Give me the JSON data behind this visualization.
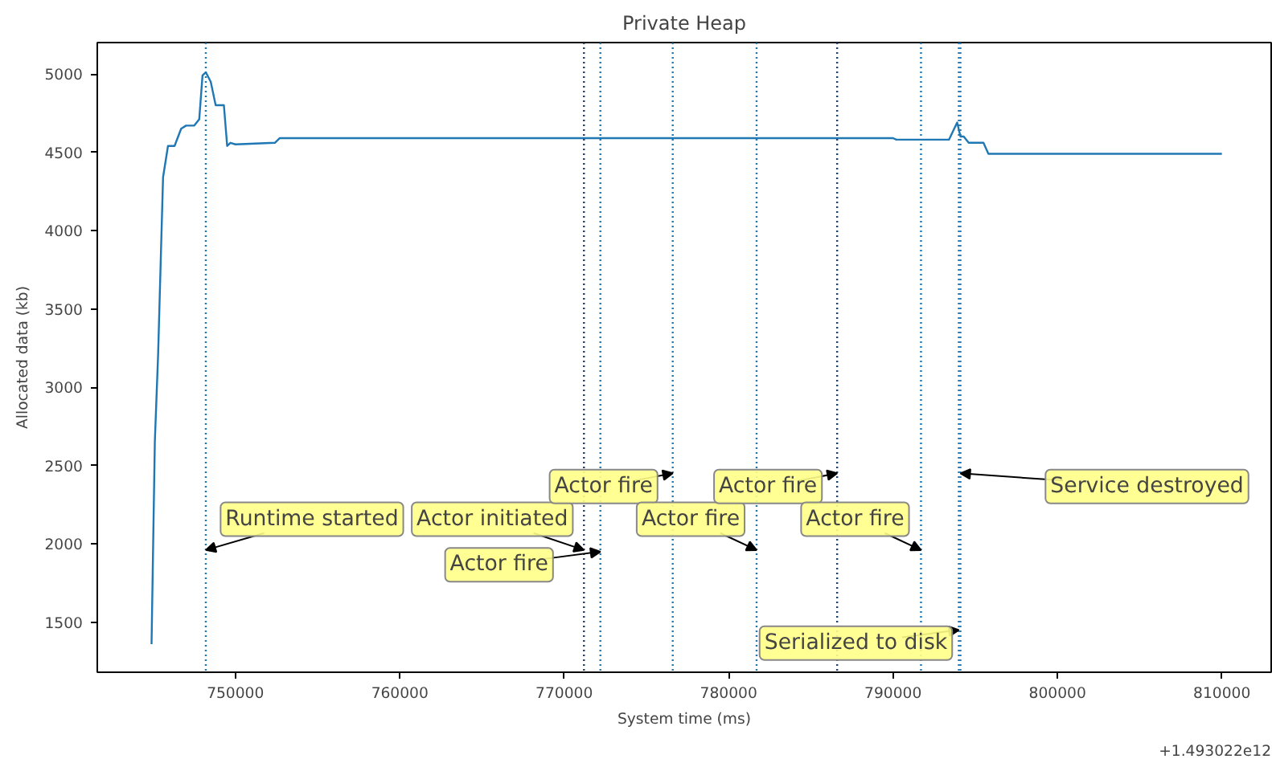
{
  "chart_data": {
    "type": "line",
    "title": "Private Heap",
    "xlabel": "System time (ms)",
    "ylabel": "Allocated data (kb)",
    "x": [
      744900,
      745100,
      745300,
      745600,
      745900,
      746300,
      746700,
      747000,
      747500,
      747800,
      748000,
      748200,
      748500,
      748800,
      749300,
      749500,
      749700,
      750000,
      752400,
      752700,
      790000,
      790200,
      793400,
      793900,
      794100,
      794300,
      794600,
      795500,
      795800,
      810000
    ],
    "series": [
      {
        "color": "#1f77b4",
        "values": [
          1360,
          2650,
          3210,
          4340,
          4540,
          4540,
          4650,
          4670,
          4670,
          4710,
          4990,
          5010,
          4950,
          4800,
          4800,
          4540,
          4560,
          4550,
          4560,
          4590,
          4590,
          4580,
          4580,
          4690,
          4600,
          4600,
          4560,
          4560,
          4490,
          4490
        ]
      }
    ],
    "xlim": [
      741600,
      813000
    ],
    "ylim": [
      1180,
      5200
    ],
    "xticks": [
      750000,
      760000,
      770000,
      780000,
      790000,
      800000,
      810000
    ],
    "yticks": [
      1500,
      2000,
      2500,
      3000,
      3500,
      4000,
      4500,
      5000
    ],
    "grid": false,
    "line_style": "solid",
    "marker": "none",
    "ref_lines": [
      {
        "axis": "x",
        "value": 748200,
        "color": "#1f77b4",
        "line_style": "dotted"
      },
      {
        "axis": "x",
        "value": 771200,
        "color": "#1f3f6f",
        "line_style": "dotted"
      },
      {
        "axis": "x",
        "value": 772200,
        "color": "#1f77b4",
        "line_style": "dotted"
      },
      {
        "axis": "x",
        "value": 776600,
        "color": "#1f77b4",
        "line_style": "dotted"
      },
      {
        "axis": "x",
        "value": 781700,
        "color": "#1f77b4",
        "line_style": "dotted"
      },
      {
        "axis": "x",
        "value": 786600,
        "color": "#1f3f6f",
        "line_style": "dotted"
      },
      {
        "axis": "x",
        "value": 791700,
        "color": "#1f77b4",
        "line_style": "dotted"
      },
      {
        "axis": "x",
        "value": 794000,
        "color": "#1f77b4",
        "line_style": "dotted"
      },
      {
        "axis": "x",
        "value": 794100,
        "color": "#1f77b4",
        "line_style": "dotted"
      }
    ],
    "annotations": [
      {
        "text": "Runtime started",
        "x": 748200,
        "y": 1960
      },
      {
        "text": "Actor initiated",
        "x": 771200,
        "y": 1960
      },
      {
        "text": "Actor fire",
        "x": 772200,
        "y": 1950
      },
      {
        "text": "Actor fire",
        "x": 776600,
        "y": 2450
      },
      {
        "text": "Actor fire",
        "x": 781700,
        "y": 1960
      },
      {
        "text": "Actor fire",
        "x": 786600,
        "y": 2450
      },
      {
        "text": "Actor fire",
        "x": 791700,
        "y": 1960
      },
      {
        "text": "Serialized to disk",
        "x": 794000,
        "y": 1450
      },
      {
        "text": "Service destroyed",
        "x": 794100,
        "y": 2450
      },
      "+1.493022e12"
    ]
  }
}
